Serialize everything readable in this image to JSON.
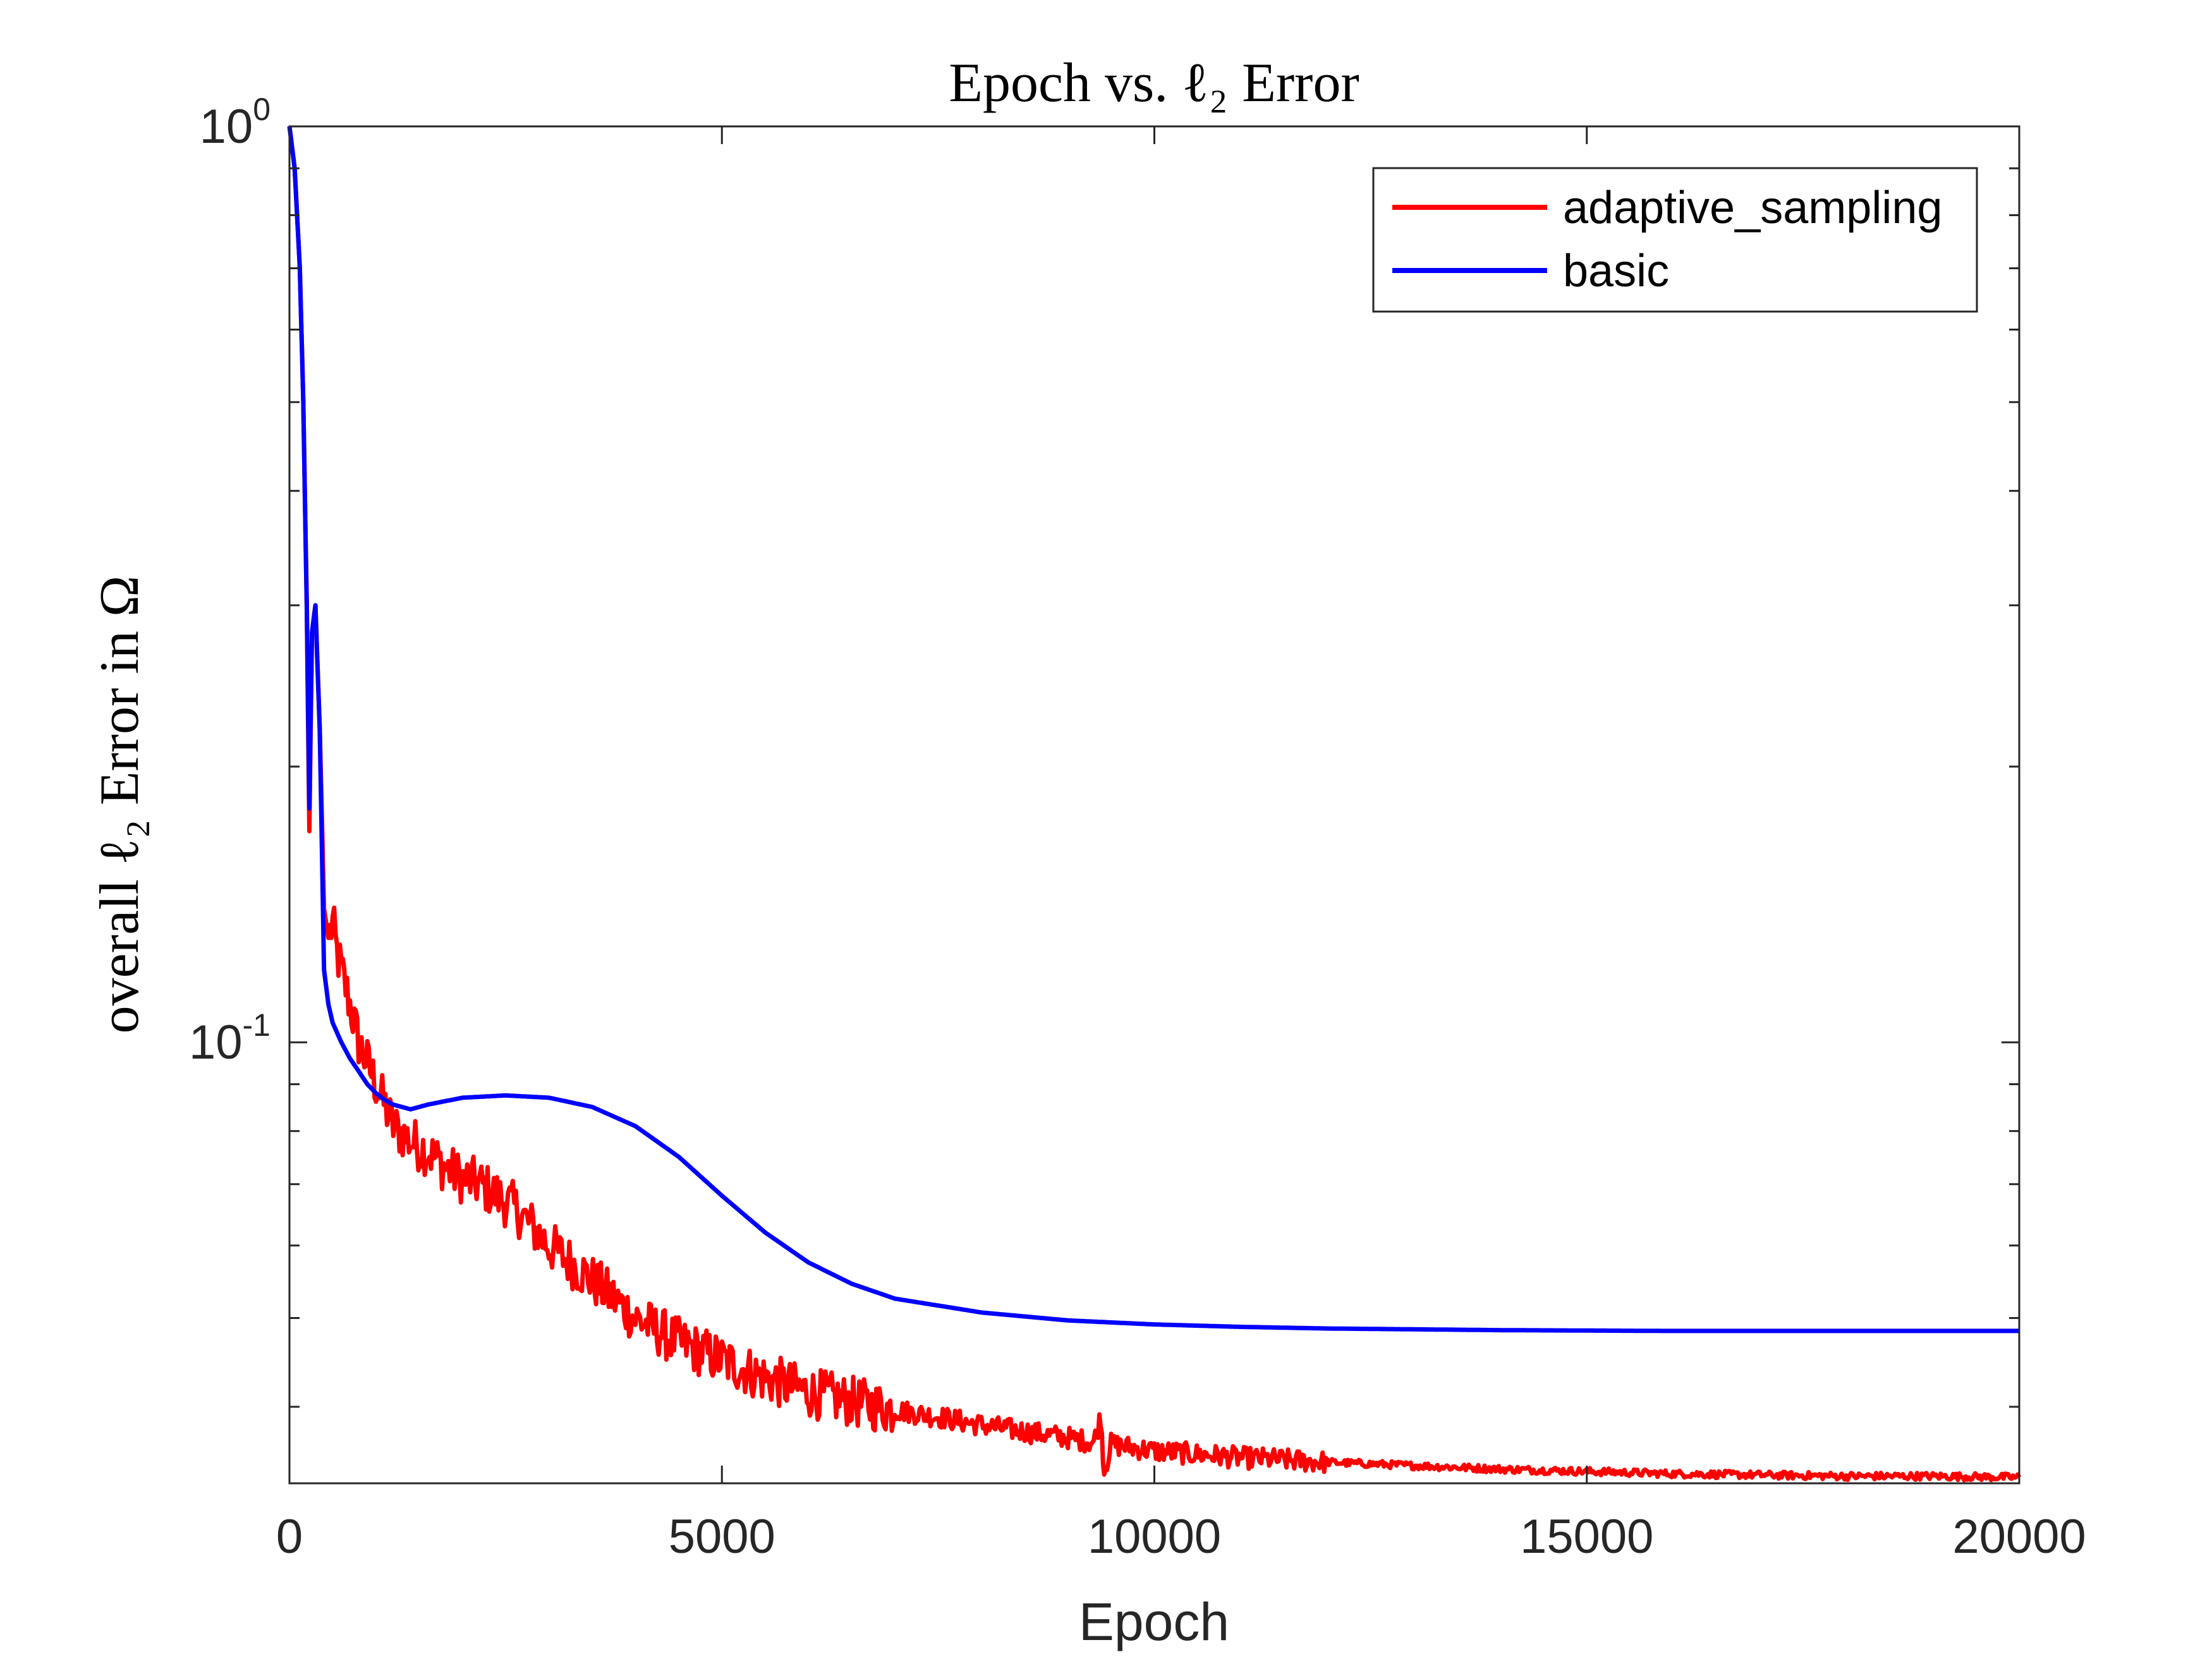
{
  "chart_data": {
    "type": "line",
    "title": "Epoch vs. ℓ₂ Error",
    "xlabel": "Epoch",
    "ylabel": "overall ℓ₂ Error in Ω",
    "xlim": [
      0,
      20000
    ],
    "ylim": [
      0.033,
      1.0
    ],
    "yscale": "log",
    "x_ticks": [
      "0",
      "5000",
      "10000",
      "15000",
      "20000"
    ],
    "y_ticks": [
      {
        "base": "10",
        "exp": "0",
        "value": 1.0
      },
      {
        "base": "10",
        "exp": "-1",
        "value": 0.1
      }
    ],
    "grid": false,
    "legend_position": "top-right",
    "series": [
      {
        "name": "adaptive_sampling",
        "color": "#ff0000",
        "x": [
          0,
          60,
          120,
          160,
          200,
          230,
          260,
          300,
          350,
          400,
          450,
          500,
          550,
          600,
          700,
          800,
          900,
          1000,
          1200,
          1400,
          1600,
          1800,
          2000,
          2200,
          2400,
          2600,
          2800,
          3000,
          3200,
          3400,
          3600,
          3800,
          4000,
          4500,
          5000,
          5500,
          6000,
          6500,
          7000,
          7500,
          8000,
          8500,
          9000,
          9300,
          9380,
          9420,
          9500,
          10000,
          11000,
          12000,
          13000,
          14000,
          15000,
          16000,
          17000,
          18000,
          19000,
          20000
        ],
        "y": [
          1.0,
          0.9,
          0.7,
          0.5,
          0.3,
          0.17,
          0.28,
          0.3,
          0.22,
          0.14,
          0.13,
          0.135,
          0.125,
          0.12,
          0.11,
          0.1,
          0.095,
          0.09,
          0.081,
          0.078,
          0.076,
          0.073,
          0.071,
          0.07,
          0.068,
          0.066,
          0.063,
          0.06,
          0.058,
          0.056,
          0.054,
          0.052,
          0.05,
          0.047,
          0.045,
          0.043,
          0.0415,
          0.0405,
          0.0397,
          0.039,
          0.0382,
          0.0376,
          0.037,
          0.0366,
          0.039,
          0.034,
          0.0364,
          0.0358,
          0.0352,
          0.0348,
          0.0345,
          0.0342,
          0.034,
          0.0338,
          0.0337,
          0.0336,
          0.0336,
          0.0335
        ]
      },
      {
        "name": "basic",
        "color": "#0000ff",
        "x": [
          0,
          60,
          120,
          160,
          200,
          230,
          260,
          300,
          350,
          400,
          450,
          500,
          600,
          700,
          800,
          900,
          1000,
          1100,
          1200,
          1300,
          1400,
          1600,
          2000,
          2500,
          3000,
          3500,
          4000,
          4500,
          5000,
          5500,
          6000,
          6500,
          7000,
          8000,
          9000,
          10000,
          11000,
          12000,
          14000,
          16000,
          18000,
          20000
        ],
        "y": [
          1.0,
          0.9,
          0.7,
          0.5,
          0.3,
          0.18,
          0.28,
          0.3,
          0.22,
          0.12,
          0.11,
          0.105,
          0.1,
          0.096,
          0.093,
          0.09,
          0.088,
          0.0865,
          0.0855,
          0.085,
          0.0845,
          0.0855,
          0.087,
          0.0875,
          0.087,
          0.085,
          0.081,
          0.075,
          0.068,
          0.062,
          0.0575,
          0.0545,
          0.0525,
          0.0507,
          0.0497,
          0.0492,
          0.0489,
          0.0487,
          0.0485,
          0.0484,
          0.0484,
          0.0484
        ]
      }
    ]
  }
}
